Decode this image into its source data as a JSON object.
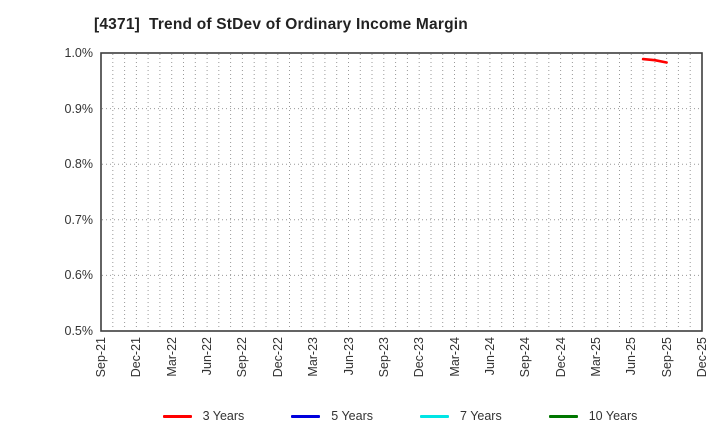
{
  "chart_data": {
    "type": "line",
    "title": "[4371]  Trend of StDev of Ordinary Income Margin",
    "xlabel": "",
    "ylabel": "",
    "ylim": [
      0.5,
      1.0
    ],
    "ytick_step": 0.1,
    "ytick_labels_top_to_bottom": [
      "1.0%",
      "0.9%",
      "0.8%",
      "0.7%",
      "0.6%",
      "0.5%"
    ],
    "x_categories": [
      "Sep-21",
      "Dec-21",
      "Mar-22",
      "Jun-22",
      "Sep-22",
      "Dec-22",
      "Mar-23",
      "Jun-23",
      "Sep-23",
      "Dec-23",
      "Mar-24",
      "Jun-24",
      "Sep-24",
      "Dec-24",
      "Mar-25",
      "Jun-25",
      "Sep-25",
      "Dec-25"
    ],
    "months_per_category": 3,
    "grid": true,
    "grid_style": "dotted",
    "legend_position": "bottom",
    "series": [
      {
        "name": "3 Years",
        "color": "#ff0000",
        "points": [
          [
            "Jul-25",
            0.989
          ],
          [
            "Aug-25",
            0.987
          ],
          [
            "Sep-25",
            0.983
          ]
        ]
      },
      {
        "name": "5 Years",
        "color": "#0000dd",
        "points": []
      },
      {
        "name": "7 Years",
        "color": "#00e5e5",
        "points": []
      },
      {
        "name": "10 Years",
        "color": "#007700",
        "points": []
      }
    ]
  },
  "colors": {
    "background": "#ffffff",
    "axis_border": "#3d3d3d",
    "grid": "#999999",
    "tick_text": "#333333",
    "title_text": "#222222"
  }
}
